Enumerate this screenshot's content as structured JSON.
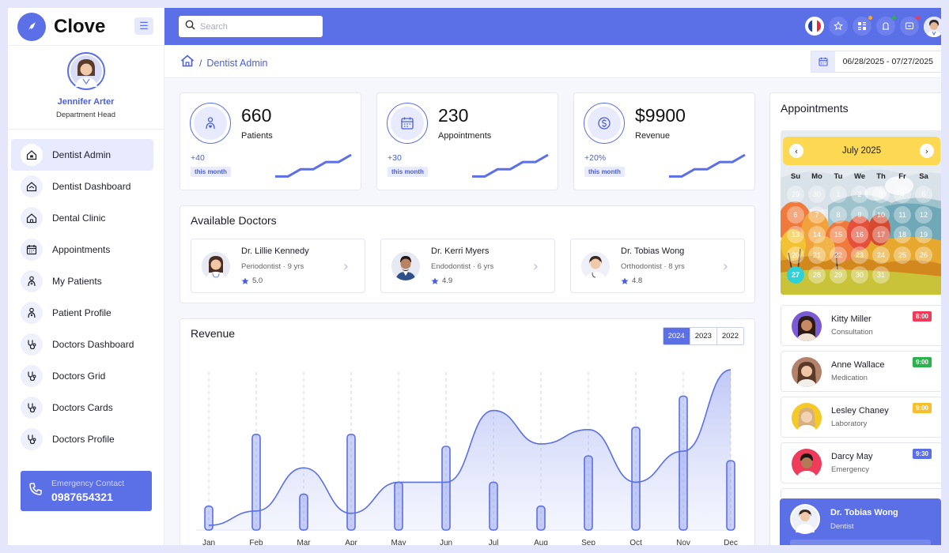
{
  "brand": {
    "name": "Clove"
  },
  "profile": {
    "name": "Jennifer Arter",
    "role": "Department Head"
  },
  "nav": [
    {
      "label": "Dentist Admin",
      "icon": "house-tooth-icon",
      "active": true
    },
    {
      "label": "Dentist Dashboard",
      "icon": "house-medical-icon"
    },
    {
      "label": "Dental Clinic",
      "icon": "house-icon"
    },
    {
      "label": "Appointments",
      "icon": "calendar-icon"
    },
    {
      "label": "My Patients",
      "icon": "patient-icon"
    },
    {
      "label": "Patient Profile",
      "icon": "patient-profile-icon"
    },
    {
      "label": "Doctors Dashboard",
      "icon": "stethoscope-icon"
    },
    {
      "label": "Doctors Grid",
      "icon": "stethoscope-icon"
    },
    {
      "label": "Doctors Cards",
      "icon": "stethoscope-icon"
    },
    {
      "label": "Doctors Profile",
      "icon": "stethoscope-icon"
    }
  ],
  "emergency": {
    "label": "Emergency Contact",
    "number": "0987654321"
  },
  "search": {
    "placeholder": "Search"
  },
  "breadcrumb": {
    "current": "Dentist Admin"
  },
  "date_range": "06/28/2025 - 07/27/2025",
  "stats": [
    {
      "value": "660",
      "label": "Patients",
      "change": "+40",
      "period": "this month",
      "icon": "patient-icon",
      "trend": [
        1,
        1,
        3,
        3,
        5,
        5,
        7
      ]
    },
    {
      "value": "230",
      "label": "Appointments",
      "change": "+30",
      "period": "this month",
      "icon": "calendar-icon",
      "trend": [
        1,
        1,
        3,
        3,
        5,
        5,
        7
      ]
    },
    {
      "value": "$9900",
      "label": "Revenue",
      "change": "+20%",
      "period": "this month",
      "icon": "dollar-coin-icon",
      "trend": [
        1,
        1,
        3,
        3,
        5,
        5,
        7
      ]
    }
  ],
  "doctors": {
    "title": "Available Doctors",
    "items": [
      {
        "name": "Dr. Lillie Kennedy",
        "meta": "Periodontist · 9 yrs",
        "rating": "5.0"
      },
      {
        "name": "Dr. Kerri Myers",
        "meta": "Endodontist · 6 yrs",
        "rating": "4.9"
      },
      {
        "name": "Dr. Tobias Wong",
        "meta": "Orthodontist · 8 yrs",
        "rating": "4.8"
      }
    ]
  },
  "revenue": {
    "title": "Revenue",
    "years": [
      "2024",
      "2023",
      "2022"
    ],
    "active_year": "2024"
  },
  "chart_data": {
    "type": "bar",
    "title": "Revenue",
    "categories": [
      "Jan",
      "Feb",
      "Mar",
      "Apr",
      "May",
      "Jun",
      "Jul",
      "Aug",
      "Sep",
      "Oct",
      "Nov",
      "Dec"
    ],
    "series": [
      {
        "type": "bar",
        "values": [
          10,
          40,
          15,
          40,
          20,
          35,
          20,
          10,
          31,
          43,
          56,
          29
        ]
      },
      {
        "type": "area",
        "values": [
          2,
          8,
          26,
          7,
          20,
          20,
          50,
          36,
          42,
          20,
          33,
          67
        ]
      }
    ],
    "ylim": [
      0,
      70
    ],
    "grid": "vertical dashed",
    "color": "#5b6fe6"
  },
  "appointments": {
    "title": "Appointments",
    "calendar": {
      "month": "July 2025",
      "dow": [
        "Su",
        "Mo",
        "Tu",
        "We",
        "Th",
        "Fr",
        "Sa"
      ],
      "lead_days": [
        "29",
        "30"
      ],
      "days": [
        "1",
        "2",
        "3",
        "4",
        "5",
        "6",
        "7",
        "8",
        "9",
        "10",
        "11",
        "12",
        "13",
        "14",
        "15",
        "16",
        "17",
        "18",
        "19",
        "20",
        "21",
        "22",
        "23",
        "24",
        "25",
        "26",
        "27",
        "28",
        "29",
        "30",
        "31"
      ],
      "today": "27"
    },
    "items": [
      {
        "name": "Kitty Miller",
        "type": "Consultation",
        "time": "8:00",
        "color": "#ee3c5a"
      },
      {
        "name": "Anne Wallace",
        "type": "Medication",
        "time": "9:00",
        "color": "#2bb24c"
      },
      {
        "name": "Lesley Chaney",
        "type": "Laboratory",
        "time": "9:00",
        "color": "#f7bf2c"
      },
      {
        "name": "Darcy May",
        "type": "Emergency",
        "time": "9:30",
        "color": "#5b6fe6"
      }
    ]
  },
  "featured_doctor": {
    "name": "Dr. Tobias Wong",
    "role": "Dentist"
  },
  "colors": {
    "primary": "#5b6fe6",
    "background": "#f5f7fd"
  }
}
